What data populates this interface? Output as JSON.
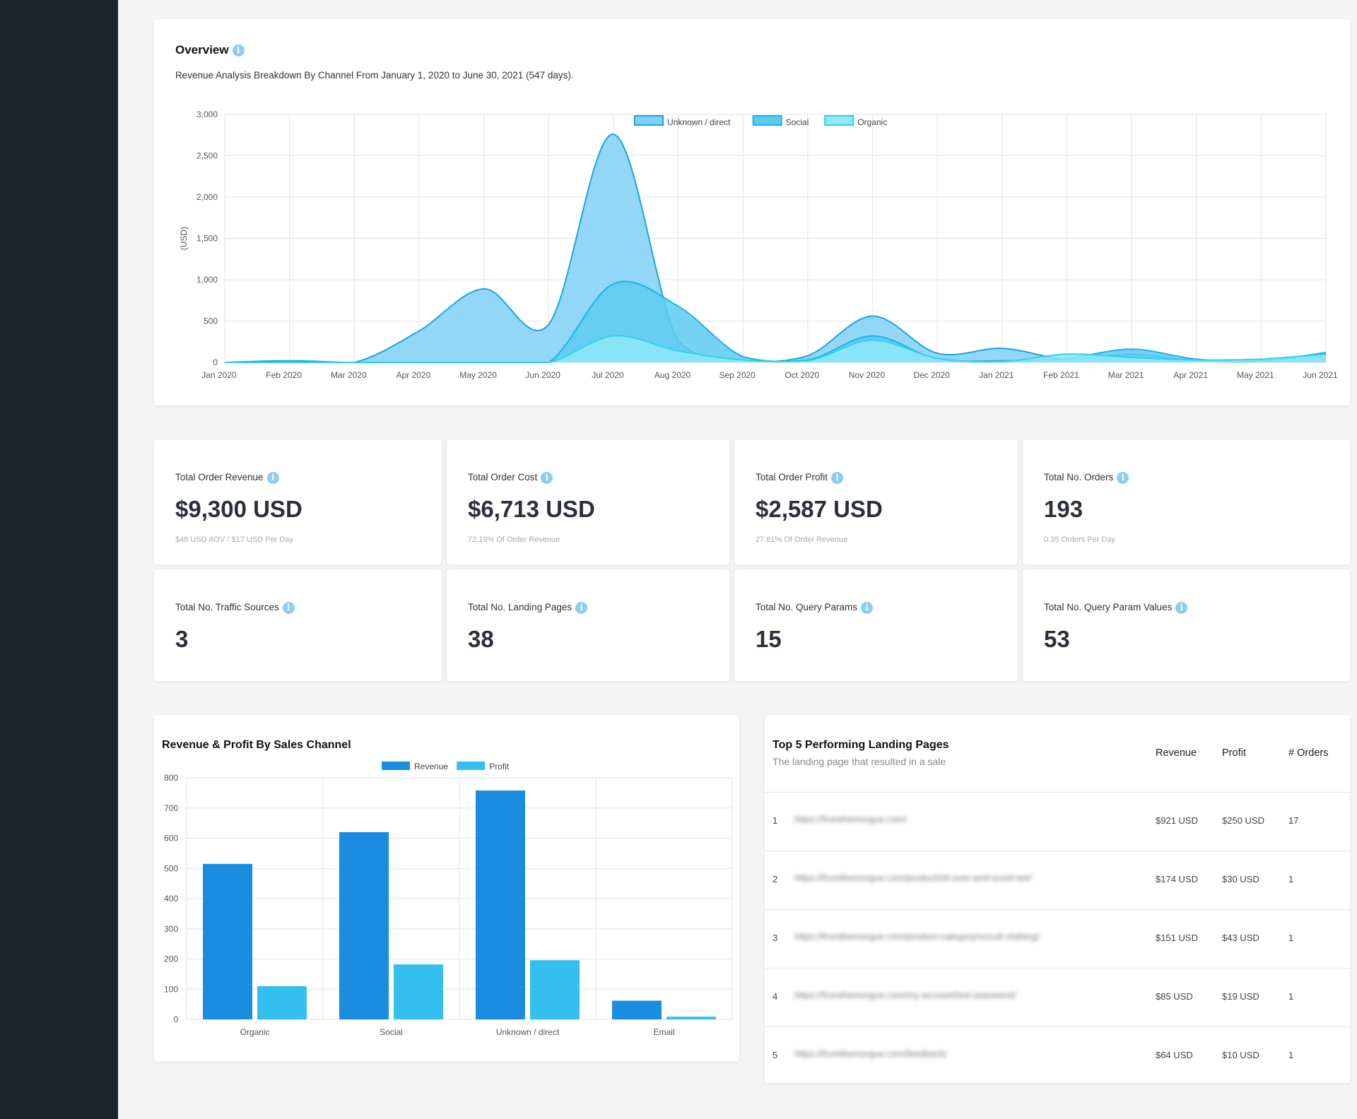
{
  "overview": {
    "title": "Overview",
    "subtitle": "Revenue Analysis Breakdown By Channel From January 1, 2020 to June 30, 2021 (547 days)."
  },
  "chart_data": [
    {
      "type": "area",
      "title": "",
      "xlabel": "",
      "ylabel": "(USD)",
      "ylim": [
        0,
        3000
      ],
      "yticks": [
        "3,000",
        "2,500",
        "2,000",
        "1,500",
        "1,000",
        "500",
        "0"
      ],
      "categories": [
        "Jan 2020",
        "Feb 2020",
        "Mar 2020",
        "Apr 2020",
        "May 2020",
        "Jun 2020",
        "Jul 2020",
        "Aug 2020",
        "Sep 2020",
        "Oct 2020",
        "Nov 2020",
        "Dec 2020",
        "Jan 2021",
        "Feb 2021",
        "Mar 2021",
        "Apr 2021",
        "May 2021",
        "Jun 2021"
      ],
      "legend_position": "top-center",
      "grid": true,
      "series": [
        {
          "name": "Unknown / direct",
          "color": "#7fd0f7",
          "values": [
            0,
            20,
            0,
            380,
            890,
            460,
            2760,
            260,
            20,
            80,
            560,
            110,
            170,
            40,
            100,
            20,
            10,
            80
          ]
        },
        {
          "name": "Social",
          "color": "#5ccbf0",
          "values": [
            0,
            0,
            0,
            0,
            0,
            0,
            950,
            680,
            70,
            30,
            320,
            40,
            20,
            50,
            160,
            40,
            20,
            120
          ]
        },
        {
          "name": "Organic",
          "color": "#8fe8f8",
          "values": [
            0,
            0,
            0,
            0,
            0,
            0,
            320,
            140,
            30,
            20,
            270,
            50,
            10,
            100,
            60,
            30,
            40,
            100
          ]
        }
      ]
    },
    {
      "type": "bar",
      "title": "Revenue & Profit By Sales Channel",
      "xlabel": "",
      "ylabel": "",
      "ylim": [
        0,
        800
      ],
      "yticks": [
        "800",
        "700",
        "600",
        "500",
        "400",
        "300",
        "200",
        "100",
        "0"
      ],
      "categories": [
        "Organic",
        "Social",
        "Unknown / direct",
        "Email"
      ],
      "legend_position": "top-center",
      "grid": true,
      "series": [
        {
          "name": "Revenue",
          "color": "#1a8de0",
          "values": [
            515,
            620,
            758,
            62
          ]
        },
        {
          "name": "Profit",
          "color": "#33c0ef",
          "values": [
            110,
            182,
            196,
            9
          ]
        }
      ]
    }
  ],
  "stats": [
    {
      "label": "Total Order Revenue",
      "value": "$9,300 USD",
      "sub": "$48 USD AOV / $17 USD Per Day"
    },
    {
      "label": "Total Order Cost",
      "value": "$6,713 USD",
      "sub": "72.19% Of Order Revenue"
    },
    {
      "label": "Total Order Profit",
      "value": "$2,587 USD",
      "sub": "27.81% Of Order Revenue"
    },
    {
      "label": "Total No. Orders",
      "value": "193",
      "sub": "0.35 Orders Per Day"
    },
    {
      "label": "Total No. Traffic Sources",
      "value": "3",
      "sub": ""
    },
    {
      "label": "Total No. Landing Pages",
      "value": "38",
      "sub": ""
    },
    {
      "label": "Total No. Query Params",
      "value": "15",
      "sub": ""
    },
    {
      "label": "Total No. Query Param Values",
      "value": "53",
      "sub": ""
    }
  ],
  "landing_pages": {
    "title": "Top 5 Performing Landing Pages",
    "subtitle": "The landing page that resulted in a sale",
    "headers": {
      "revenue": "Revenue",
      "profit": "Profit",
      "orders": "# Orders"
    },
    "rows": [
      {
        "rank": "1",
        "url": "https://fromthemorgue.com/",
        "revenue": "$921 USD",
        "profit": "$250 USD",
        "orders": "17"
      },
      {
        "rank": "2",
        "url": "https://fromthemorgue.com/product/sit-over-and-scoot-tee/",
        "revenue": "$174 USD",
        "profit": "$30 USD",
        "orders": "1"
      },
      {
        "rank": "3",
        "url": "https://fromthemorgue.com/product-category/occult-clothing/",
        "revenue": "$151 USD",
        "profit": "$43 USD",
        "orders": "1"
      },
      {
        "rank": "4",
        "url": "https://fromthemorgue.com/my-account/lost-password/",
        "revenue": "$85 USD",
        "profit": "$19 USD",
        "orders": "1"
      },
      {
        "rank": "5",
        "url": "https://fromthemorgue.com/feedback/",
        "revenue": "$64 USD",
        "profit": "$10 USD",
        "orders": "1"
      }
    ]
  }
}
